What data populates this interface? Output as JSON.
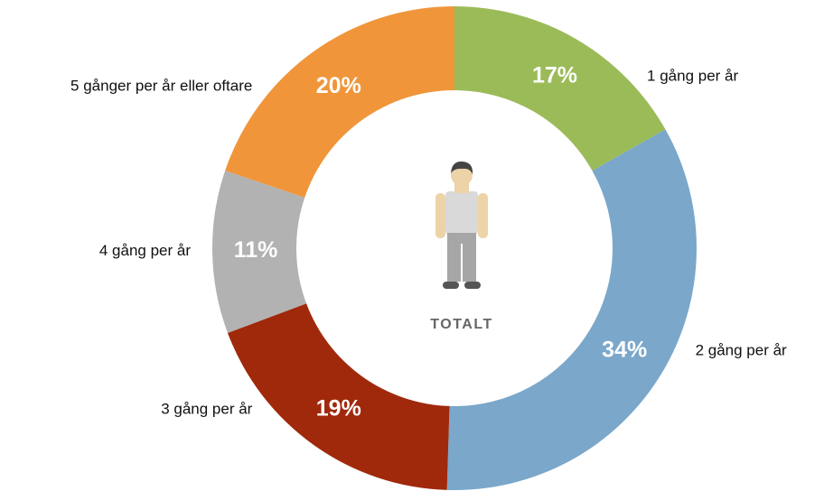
{
  "chart_data": {
    "type": "donut",
    "center_label": "TOTALT",
    "categories": [
      "1 gång per år",
      "2 gång per år",
      "3 gång per år",
      "4 gång per år",
      "5 gånger per år eller oftare"
    ],
    "values": [
      17,
      34,
      19,
      11,
      20
    ],
    "value_labels": [
      "17%",
      "34%",
      "19%",
      "11%",
      "20%"
    ],
    "colors": [
      "#9bbb59",
      "#7aa7ca",
      "#a0290c",
      "#b2b2b2",
      "#f0953a"
    ]
  }
}
